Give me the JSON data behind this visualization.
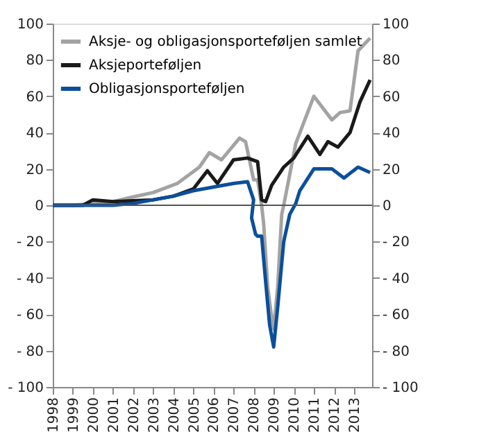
{
  "chart_data": {
    "type": "line",
    "series": [
      {
        "name": "Aksje- og obligasjonsporteføljen samlet",
        "color": "#a3a3a3",
        "x": [
          1998,
          1999,
          2000,
          2001,
          2002,
          2003,
          2004.2,
          2005.3,
          2005.8,
          2006.4,
          2007.3,
          2007.6,
          2008.0,
          2008.2,
          2008.4,
          2008.5,
          2008.7,
          2008.9,
          2009.0,
          2009.2,
          2009.4,
          2009.5,
          2010.1,
          2011.0,
          2011.9,
          2012.3,
          2012.8,
          2013.2,
          2013.8
        ],
        "values": [
          0,
          0,
          1,
          2,
          4.6,
          7,
          12,
          21,
          29,
          25,
          37,
          35,
          14,
          14,
          0,
          -10,
          -45,
          -62,
          -68,
          -45,
          -5,
          0,
          34,
          60,
          47,
          51,
          52,
          85,
          92
        ]
      },
      {
        "name": "Aksjeporteføljen",
        "color": "#1a1a1a",
        "x": [
          1998,
          1999,
          1999.5,
          2000,
          2001,
          2003,
          2004,
          2005,
          2005.7,
          2006.2,
          2007,
          2007.7,
          2008.2,
          2008.4,
          2008.6,
          2008.9,
          2009.5,
          2010,
          2010.7,
          2011.3,
          2011.7,
          2012.2,
          2012.8,
          2013.3,
          2013.8
        ],
        "values": [
          0,
          0,
          0,
          3,
          2,
          3,
          5,
          9,
          19,
          12,
          25,
          26,
          24,
          3,
          2,
          11,
          21,
          26,
          38,
          28,
          35,
          32,
          40,
          57,
          69
        ]
      },
      {
        "name": "Obligasjonsporteføljen",
        "color": "#0b4f9c",
        "x": [
          1998,
          1999,
          2001,
          2002,
          2003,
          2004,
          2005,
          2006,
          2007,
          2007.7,
          2008.0,
          2007.9,
          2008.1,
          2008.2,
          2008.4,
          2008.6,
          2008.8,
          2009.0,
          2009.2,
          2009.5,
          2009.8,
          2010.1,
          2010.3,
          2011.0,
          2011.9,
          2012.5,
          2013.2,
          2013.8
        ],
        "values": [
          0,
          0,
          0,
          1,
          3,
          5,
          8,
          10,
          12,
          13,
          3,
          -7,
          -16,
          -17,
          -17,
          -42,
          -66,
          -78,
          -56,
          -20,
          -5,
          1,
          8,
          20,
          20,
          15,
          21,
          18
        ]
      }
    ],
    "xlim": [
      1998,
      2013.9
    ],
    "xticks": [
      1998,
      1999,
      2000,
      2001,
      2002,
      2003,
      2004,
      2005,
      2006,
      2007,
      2008,
      2009,
      2010,
      2011,
      2012,
      2013
    ],
    "ylim": [
      -100,
      100
    ],
    "yticks": [
      {
        "value": -100,
        "label": "- 100"
      },
      {
        "value": -80,
        "label": "- 80"
      },
      {
        "value": -60,
        "label": "- 60"
      },
      {
        "value": -40,
        "label": "- 40"
      },
      {
        "value": -20,
        "label": "- 20"
      },
      0,
      20,
      40,
      60,
      80,
      100
    ],
    "y2lim": [
      -100,
      100
    ],
    "y2ticks": [
      {
        "value": -100,
        "label": "- 100"
      },
      {
        "value": -80,
        "label": "- 80"
      },
      {
        "value": -60,
        "label": "- 60"
      },
      {
        "value": -40,
        "label": "- 40"
      },
      {
        "value": -20,
        "label": "- 20"
      },
      0,
      20,
      40,
      60,
      80,
      100
    ],
    "ref_lines": [
      {
        "axis": "y",
        "value": 0,
        "color": "#555555"
      }
    ],
    "grid": false,
    "legend": "top left",
    "marker": "none",
    "line_style": "solid"
  }
}
